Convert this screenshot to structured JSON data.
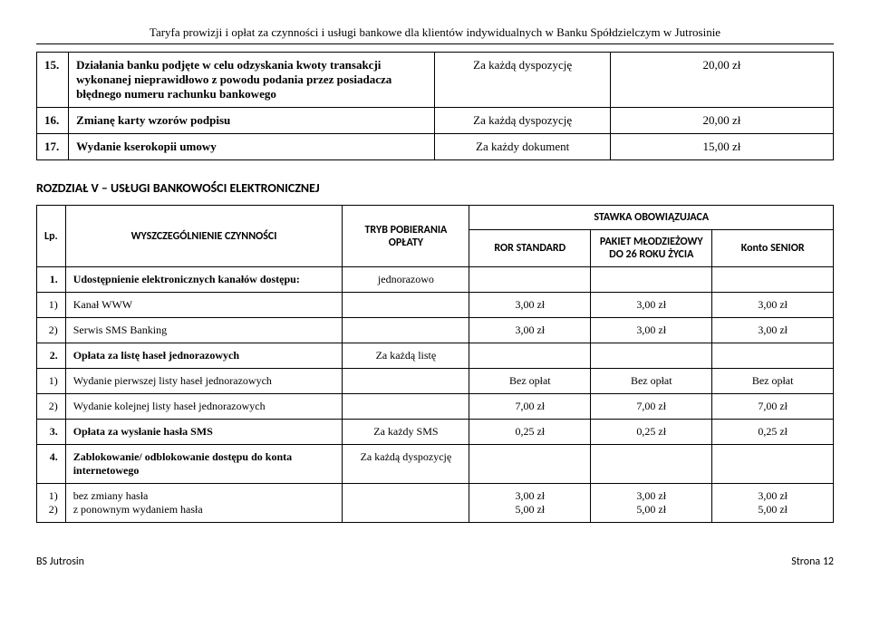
{
  "header": "Taryfa prowizji i opłat za czynności i usługi bankowe dla klientów indywidualnych w Banku Spółdzielczym w Jutrosinie",
  "top_rows": [
    {
      "num": "15.",
      "desc": "Działania banku podjęte w celu odzyskania kwoty transakcji wykonanej nieprawidłowo z powodu podania przez posiadacza błędnego numeru rachunku bankowego",
      "mode": "Za każdą dyspozycję",
      "val": "20,00 zł"
    },
    {
      "num": "16.",
      "desc": "Zmianę karty wzorów podpisu",
      "mode": "Za każdą dyspozycję",
      "val": "20,00 zł"
    },
    {
      "num": "17.",
      "desc": "Wydanie kserokopii umowy",
      "mode": "Za każdy dokument",
      "val": "15,00 zł"
    }
  ],
  "section_title": "ROZDZIAŁ V – USŁUGI BANKOWOŚCI ELEKTRONICZNEJ",
  "table2": {
    "head": {
      "lp": "Lp.",
      "act": "WYSZCZEGÓLNIENIE CZYNNOŚCI",
      "mode": "TRYB POBIERANIA OPŁATY",
      "group": "STAWKA OBOWIĄZUJACA",
      "c1": "ROR STANDARD",
      "c2": "PAKIET MŁODZIEŻOWY DO 26 ROKU ŻYCIA",
      "c3": "Konto SENIOR"
    },
    "rows": [
      {
        "lp": "1.",
        "act": "Udostępnienie elektronicznych kanałów dostępu:",
        "mode": "jednorazowo",
        "bold": true,
        "c1": "",
        "c2": "",
        "c3": ""
      },
      {
        "lp": "1)",
        "act": "Kanał WWW",
        "mode": "",
        "c1": "3,00 zł",
        "c2": "3,00 zł",
        "c3": "3,00 zł"
      },
      {
        "lp": "2)",
        "act": "Serwis SMS Banking",
        "mode": "",
        "c1": "3,00 zł",
        "c2": "3,00 zł",
        "c3": "3,00 zł"
      },
      {
        "lp": "2.",
        "act": "Opłata za listę haseł jednorazowych",
        "mode": "Za każdą listę",
        "bold": true,
        "c1": "",
        "c2": "",
        "c3": ""
      },
      {
        "lp": "1)",
        "act": "Wydanie pierwszej listy haseł jednorazowych",
        "mode": "",
        "c1": "Bez opłat",
        "c2": "Bez opłat",
        "c3": "Bez opłat"
      },
      {
        "lp": "2)",
        "act": "Wydanie kolejnej listy haseł jednorazowych",
        "mode": "",
        "c1": "7,00 zł",
        "c2": "7,00 zł",
        "c3": "7,00 zł"
      },
      {
        "lp": "3.",
        "act": "Opłata za wysłanie hasła SMS",
        "mode": "Za każdy SMS",
        "bold": true,
        "c1": "0,25 zł",
        "c2": "0,25 zł",
        "c3": "0,25 zł"
      },
      {
        "lp": "4.",
        "act": "Zablokowanie/ odblokowanie dostępu do konta internetowego",
        "mode": "Za każdą dyspozycję",
        "bold": true,
        "c1": "",
        "c2": "",
        "c3": ""
      },
      {
        "lp": "1)\n2)",
        "act": "bez zmiany hasła\nz ponownym wydaniem hasła",
        "mode": "",
        "c1": "3,00 zł\n5,00 zł",
        "c2": "3,00 zł\n5,00 zł",
        "c3": "3,00 zł\n5,00 zł"
      }
    ]
  },
  "footer": {
    "left": "BS Jutrosin",
    "right": "Strona 12"
  }
}
